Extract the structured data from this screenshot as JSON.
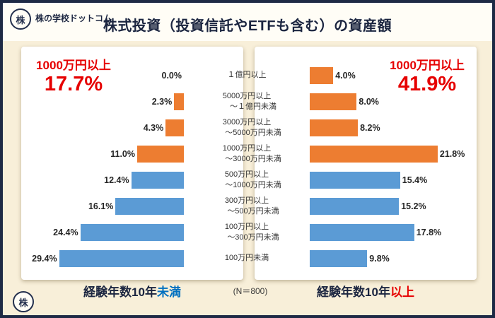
{
  "title": "株式投資（投資信託やETFも含む）の資産額",
  "logo": {
    "name": "株の学校ドットコム",
    "mark": "株"
  },
  "left_panel": {
    "highlight_label": "1000万円以上",
    "highlight_value": "17.7%",
    "axis_main": "経験年数10年",
    "axis_accent": "未満"
  },
  "right_panel": {
    "highlight_label": "1000万円以上",
    "highlight_value": "41.9%",
    "axis_main": "経験年数10年",
    "axis_accent": "以上"
  },
  "footnote": "(N＝800)",
  "colors": {
    "highlight_text": "#e60000",
    "bar_highlight": "#ed7d31",
    "bar_normal": "#5b9bd5",
    "axis_accent_left": "#0070c0",
    "axis_accent_right": "#e60000"
  },
  "chart_data": {
    "type": "bar",
    "orientation": "horizontal-mirrored",
    "title": "株式投資（投資信託やETFも含む）の資産額",
    "value_suffix": "%",
    "highlight_rows": 4,
    "sample_size": 800,
    "categories": [
      "１億円以上",
      "5000万円以上～１億円未満",
      "3000万円以上～5000万円未満",
      "1000万円以上～3000万円未満",
      "500万円以上～1000万円未満",
      "300万円以上～500万円未満",
      "100万円以上～300万円未満",
      "100万円未満"
    ],
    "categories_lines": [
      [
        "１億円以上"
      ],
      [
        "5000万円以上",
        "～１億円未満"
      ],
      [
        "3000万円以上",
        "～5000万円未満"
      ],
      [
        "1000万円以上",
        "～3000万円未満"
      ],
      [
        "500万円以上",
        "～1000万円未満"
      ],
      [
        "300万円以上",
        "～500万円未満"
      ],
      [
        "100万円以上",
        "～300万円未満"
      ],
      [
        "100万円未満"
      ]
    ],
    "series": [
      {
        "name": "経験年数10年未満",
        "values": [
          0.0,
          2.3,
          4.3,
          11.0,
          12.4,
          16.1,
          24.4,
          29.4
        ]
      },
      {
        "name": "経験年数10年以上",
        "values": [
          4.0,
          8.0,
          8.2,
          21.8,
          15.4,
          15.2,
          17.8,
          9.8
        ]
      }
    ],
    "totals": {
      "経験年数10年未満_1000万円以上": 17.7,
      "経験年数10年以上_1000万円以上": 41.9
    }
  }
}
